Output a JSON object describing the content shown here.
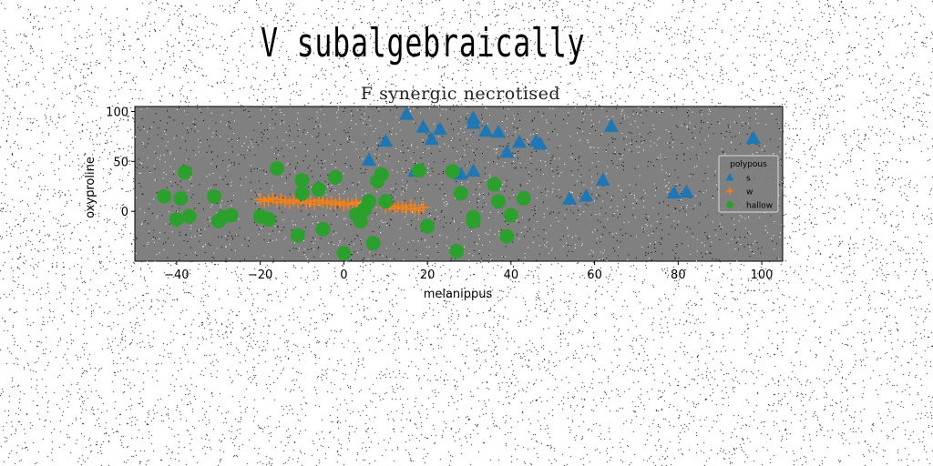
{
  "suptitle": "V subalgebraically",
  "chart_data": {
    "type": "scatter",
    "title": "F synergic necrotised",
    "xlabel": "melanippus",
    "ylabel": "oxyproline",
    "xlim": [
      -50,
      105
    ],
    "ylim": [
      -50,
      105
    ],
    "xticks": [
      -40,
      -20,
      0,
      20,
      40,
      60,
      80,
      100
    ],
    "yticks": [
      0,
      50,
      100
    ],
    "grid": false,
    "facecolor": "#808080",
    "legend": {
      "title": "polypous",
      "placement": "right",
      "entries": [
        "s",
        "w",
        "hallow"
      ]
    },
    "series": [
      {
        "name": "s",
        "marker": "triangle",
        "color": "#1f77b4",
        "points": [
          [
            15,
            97
          ],
          [
            31,
            93
          ],
          [
            31,
            88
          ],
          [
            19,
            84
          ],
          [
            23,
            82
          ],
          [
            34,
            80
          ],
          [
            37,
            79
          ],
          [
            21,
            72
          ],
          [
            42,
            69
          ],
          [
            46,
            70
          ],
          [
            47,
            67
          ],
          [
            10,
            70
          ],
          [
            39,
            59
          ],
          [
            64,
            85
          ],
          [
            98,
            73
          ],
          [
            6,
            51
          ],
          [
            17,
            40
          ],
          [
            28,
            37
          ],
          [
            31,
            40
          ],
          [
            62,
            31
          ],
          [
            58,
            15
          ],
          [
            54,
            12
          ],
          [
            79,
            18
          ],
          [
            82,
            19
          ]
        ]
      },
      {
        "name": "w",
        "marker": "plus",
        "color": "#ff7f0e",
        "points": [
          [
            -20,
            12
          ],
          [
            -19,
            10
          ],
          [
            -18,
            11
          ],
          [
            -17,
            13
          ],
          [
            -16,
            9
          ],
          [
            -15,
            12
          ],
          [
            -14,
            10
          ],
          [
            -13,
            8
          ],
          [
            -12,
            11
          ],
          [
            -11,
            9
          ],
          [
            -10,
            12
          ],
          [
            -9,
            8
          ],
          [
            -8,
            10
          ],
          [
            -7,
            7
          ],
          [
            -6,
            11
          ],
          [
            -5,
            9
          ],
          [
            -4,
            8
          ],
          [
            -3,
            10
          ],
          [
            -2,
            7
          ],
          [
            -1,
            9
          ],
          [
            0,
            6
          ],
          [
            1,
            8
          ],
          [
            2,
            7
          ],
          [
            3,
            9
          ],
          [
            4,
            5
          ],
          [
            5,
            7
          ],
          [
            10,
            4
          ],
          [
            11,
            6
          ],
          [
            12,
            3
          ],
          [
            13,
            5
          ],
          [
            14,
            4
          ],
          [
            15,
            2
          ],
          [
            16,
            6
          ],
          [
            17,
            3
          ],
          [
            18,
            1
          ],
          [
            19,
            4
          ]
        ]
      },
      {
        "name": "hallow",
        "marker": "circle",
        "color": "#2ca02c",
        "points": [
          [
            -43,
            15
          ],
          [
            -39,
            13
          ],
          [
            -38,
            39
          ],
          [
            -40,
            -8
          ],
          [
            -37,
            -5
          ],
          [
            -31,
            15
          ],
          [
            -30,
            -10
          ],
          [
            -29,
            -6
          ],
          [
            -27,
            -4
          ],
          [
            -20,
            -5
          ],
          [
            -18,
            -8
          ],
          [
            -16,
            43
          ],
          [
            -11,
            -24
          ],
          [
            -10,
            31
          ],
          [
            -10,
            18
          ],
          [
            -6,
            22
          ],
          [
            -5,
            -18
          ],
          [
            -2,
            34
          ],
          [
            0,
            -42
          ],
          [
            3,
            -3
          ],
          [
            4,
            -10
          ],
          [
            5,
            2
          ],
          [
            6,
            10
          ],
          [
            7,
            -32
          ],
          [
            8,
            30
          ],
          [
            9,
            37
          ],
          [
            10,
            10
          ],
          [
            18,
            41
          ],
          [
            20,
            -15
          ],
          [
            26,
            40
          ],
          [
            27,
            -40
          ],
          [
            28,
            18
          ],
          [
            31,
            -10
          ],
          [
            31,
            -6
          ],
          [
            36,
            27
          ],
          [
            37,
            10
          ],
          [
            39,
            -25
          ],
          [
            40,
            -4
          ],
          [
            43,
            13
          ]
        ]
      }
    ]
  }
}
